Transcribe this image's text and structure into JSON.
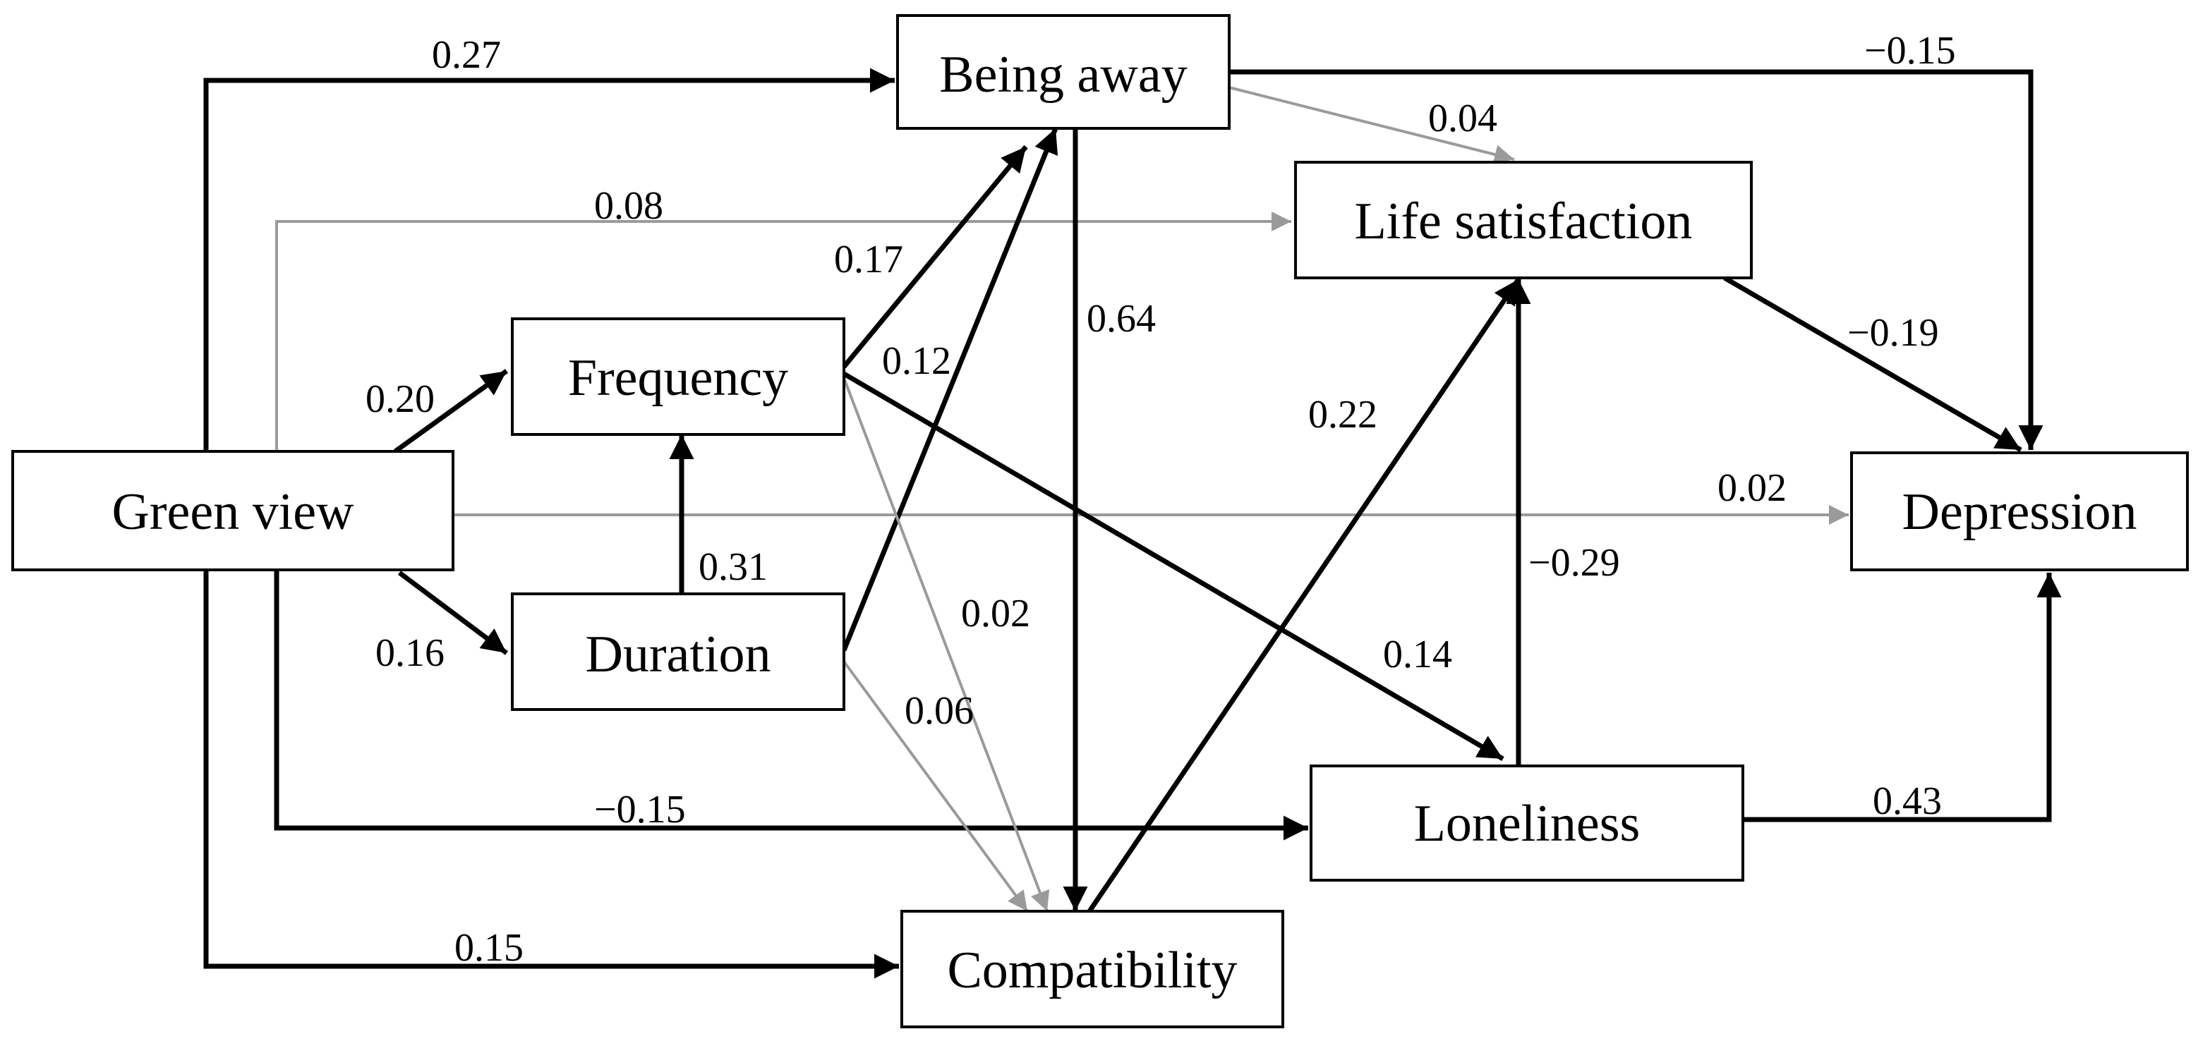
{
  "nodes": {
    "green_view": "Green view",
    "frequency": "Frequency",
    "duration": "Duration",
    "being_away": "Being away",
    "compatibility": "Compatibility",
    "life_satisfaction": "Life satisfaction",
    "loneliness": "Loneliness",
    "depression": "Depression"
  },
  "edges": {
    "green_being_away": {
      "label": "0.27",
      "significant": true
    },
    "green_life_satisfaction": {
      "label": "0.08",
      "significant": false
    },
    "green_frequency": {
      "label": "0.20",
      "significant": true
    },
    "green_duration": {
      "label": "0.16",
      "significant": true
    },
    "green_depression": {
      "label": "0.02",
      "significant": false
    },
    "green_loneliness": {
      "label": "−0.15",
      "significant": true
    },
    "green_compatibility": {
      "label": "0.15",
      "significant": true
    },
    "duration_frequency": {
      "label": "0.31",
      "significant": true
    },
    "frequency_being_away": {
      "label": "0.17",
      "significant": true
    },
    "duration_being_away": {
      "label": "0.12",
      "significant": true
    },
    "frequency_compatibility": {
      "label": "0.02",
      "significant": false
    },
    "duration_compatibility": {
      "label": "0.06",
      "significant": false
    },
    "frequency_loneliness": {
      "label": "0.14",
      "significant": true
    },
    "being_away_compatibility": {
      "label": "0.64",
      "significant": true
    },
    "being_away_life_satisfaction": {
      "label": "0.04",
      "significant": false
    },
    "being_away_depression": {
      "label": "−0.15",
      "significant": true
    },
    "compatibility_life_satisfaction": {
      "label": "0.22",
      "significant": true
    },
    "loneliness_life_satisfaction": {
      "label": "−0.29",
      "significant": true
    },
    "life_satisfaction_depression": {
      "label": "−0.19",
      "significant": true
    },
    "loneliness_depression": {
      "label": "0.43",
      "significant": true
    }
  },
  "colors": {
    "significant_path": "#000000",
    "nonsignificant_path": "#9a9a9a"
  }
}
